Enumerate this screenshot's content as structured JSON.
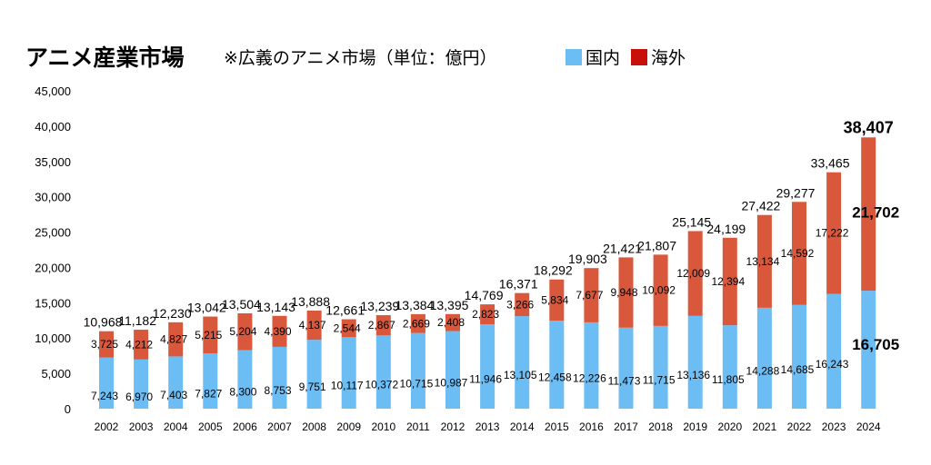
{
  "chart_data": {
    "type": "bar",
    "stacked": true,
    "title": "アニメ産業市場",
    "subtitle": "※広義のアニメ市場（単位：億円）",
    "xlabel": "",
    "ylabel": "",
    "ylim": [
      0,
      45000
    ],
    "yticks": [
      0,
      5000,
      10000,
      15000,
      20000,
      25000,
      30000,
      35000,
      40000,
      45000
    ],
    "ytick_labels": [
      "0",
      "5,000",
      "10,000",
      "15,000",
      "20,000",
      "25,000",
      "30,000",
      "35,000",
      "40,000",
      "45,000"
    ],
    "grid": false,
    "legend_position": "top",
    "categories": [
      "2002",
      "2003",
      "2004",
      "2005",
      "2006",
      "2007",
      "2008",
      "2009",
      "2010",
      "2011",
      "2012",
      "2013",
      "2014",
      "2015",
      "2016",
      "2017",
      "2018",
      "2019",
      "2020",
      "2021",
      "2022",
      "2023",
      "2024"
    ],
    "series": [
      {
        "name": "国内",
        "color": "#6cbdf3",
        "values": [
          7243,
          6970,
          7403,
          7827,
          8300,
          8753,
          9751,
          10117,
          10372,
          10715,
          10987,
          11946,
          13105,
          12458,
          12226,
          11473,
          11715,
          13136,
          11805,
          14288,
          14685,
          16243,
          16705
        ]
      },
      {
        "name": "海外",
        "color": "#d9573b",
        "legend_color": "#c8100a",
        "values": [
          3725,
          4212,
          4827,
          5215,
          5204,
          4390,
          4137,
          2544,
          2867,
          2669,
          2408,
          2823,
          3266,
          5834,
          7677,
          9948,
          10092,
          12009,
          12394,
          13134,
          14592,
          17222,
          21702
        ]
      }
    ],
    "totals": [
      10968,
      11182,
      12230,
      13042,
      13504,
      13143,
      13888,
      12661,
      13239,
      13384,
      13395,
      14769,
      16371,
      18292,
      19903,
      21421,
      21807,
      25145,
      24199,
      27422,
      29277,
      33465,
      38407
    ]
  }
}
